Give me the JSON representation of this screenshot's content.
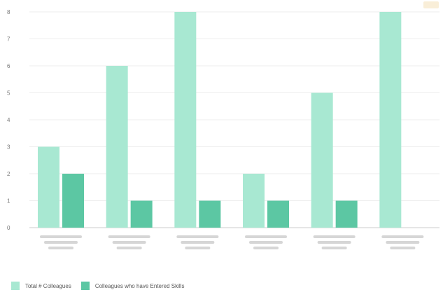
{
  "chart_data": {
    "type": "bar",
    "categories": [
      "",
      "",
      "",
      "",
      "",
      ""
    ],
    "series": [
      {
        "name": "Total # Colleagues",
        "values": [
          3,
          6,
          8,
          2,
          5,
          8
        ],
        "color": "#a8e8d2"
      },
      {
        "name": "Colleagues who have Entered Skills",
        "values": [
          2,
          1,
          1,
          1,
          1,
          0
        ],
        "color": "#5cc7a3"
      }
    ],
    "ylim": [
      0,
      8
    ],
    "yticks": [
      "0",
      "1",
      "2",
      "3",
      "4",
      "5",
      "6",
      "7",
      "8"
    ],
    "grid": true,
    "legend": "bottom-left",
    "title": "",
    "xlabel": "",
    "ylabel": ""
  }
}
